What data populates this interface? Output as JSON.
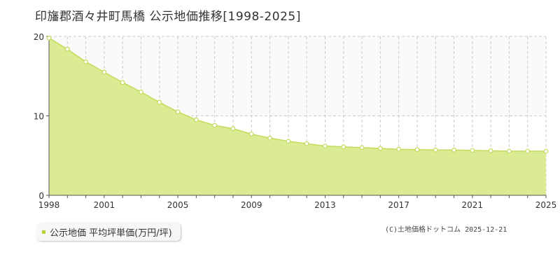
{
  "title": "印旛郡酒々井町馬橋 公示地価推移[1998-2025]",
  "legend": {
    "label": "公示地価 平均坪単価(万円/坪)"
  },
  "copyright": "(C)土地価格ドットコム 2025-12-21",
  "colors": {
    "area": "#dbeb94",
    "line": "#c2dc5a",
    "marker_fill": "#ffffff",
    "swatch": "#b5d334",
    "grid": "#cccccc"
  },
  "chart_data": {
    "type": "area",
    "title": "印旛郡酒々井町馬橋 公示地価推移[1998-2025]",
    "xlabel": "",
    "ylabel": "",
    "xlim": [
      1998,
      2025
    ],
    "ylim": [
      0,
      20
    ],
    "x_ticks": [
      1998,
      2001,
      2005,
      2009,
      2013,
      2017,
      2021,
      2025
    ],
    "y_ticks": [
      0,
      10,
      20
    ],
    "grid": true,
    "legend_position": "bottom-left",
    "series": [
      {
        "name": "公示地価 平均坪単価(万円/坪)",
        "x": [
          1998,
          1999,
          2000,
          2001,
          2002,
          2003,
          2004,
          2005,
          2006,
          2007,
          2008,
          2009,
          2010,
          2011,
          2012,
          2013,
          2014,
          2015,
          2016,
          2017,
          2018,
          2019,
          2020,
          2021,
          2022,
          2023,
          2024,
          2025
        ],
        "values": [
          19.8,
          18.4,
          16.8,
          15.5,
          14.2,
          13.0,
          11.7,
          10.5,
          9.5,
          8.8,
          8.4,
          7.7,
          7.2,
          6.8,
          6.5,
          6.2,
          6.1,
          6.0,
          5.9,
          5.8,
          5.75,
          5.7,
          5.7,
          5.65,
          5.6,
          5.55,
          5.55,
          5.55
        ]
      }
    ]
  }
}
